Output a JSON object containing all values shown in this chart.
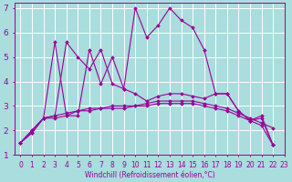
{
  "xlabel": "Windchill (Refroidissement éolien,°C)",
  "xlim": [
    -0.5,
    23
  ],
  "ylim": [
    1,
    7.2
  ],
  "xticks": [
    0,
    1,
    2,
    3,
    4,
    5,
    6,
    7,
    8,
    9,
    10,
    11,
    12,
    13,
    14,
    15,
    16,
    17,
    18,
    19,
    20,
    21,
    22,
    23
  ],
  "yticks": [
    1,
    2,
    3,
    4,
    5,
    6,
    7
  ],
  "bg_color": "#aadddd",
  "grid_color": "#ffffff",
  "line_color": "#990099",
  "series": [
    {
      "x": [
        0,
        1,
        2,
        3,
        4,
        5,
        6,
        7,
        8,
        9,
        10,
        11,
        12,
        13,
        14,
        15,
        16,
        17,
        18,
        19,
        20,
        21,
        22
      ],
      "y": [
        1.5,
        1.9,
        2.5,
        5.6,
        2.6,
        2.6,
        5.3,
        3.9,
        5.0,
        3.7,
        7.0,
        5.8,
        6.3,
        7.0,
        6.5,
        6.2,
        5.3,
        3.5,
        3.5,
        2.8,
        2.4,
        2.6,
        1.4
      ]
    },
    {
      "x": [
        0,
        1,
        2,
        3,
        4,
        5,
        6,
        7,
        8,
        9,
        10,
        11,
        12,
        13,
        14,
        15,
        16,
        17,
        18,
        19,
        20,
        21,
        22
      ],
      "y": [
        1.5,
        1.9,
        2.5,
        2.5,
        2.6,
        2.8,
        2.9,
        2.9,
        3.0,
        3.0,
        3.0,
        3.1,
        3.2,
        3.2,
        3.2,
        3.2,
        3.1,
        3.0,
        2.9,
        2.7,
        2.5,
        2.3,
        2.1
      ]
    },
    {
      "x": [
        0,
        1,
        2,
        3,
        4,
        5,
        6,
        7,
        8,
        9,
        10,
        11,
        12,
        13,
        14,
        15,
        16,
        17,
        18,
        19,
        20,
        21,
        22
      ],
      "y": [
        1.5,
        2.0,
        2.5,
        2.6,
        2.7,
        2.8,
        2.8,
        2.9,
        2.9,
        2.9,
        3.0,
        3.0,
        3.1,
        3.1,
        3.1,
        3.1,
        3.0,
        2.9,
        2.8,
        2.6,
        2.4,
        2.2,
        1.4
      ]
    },
    {
      "x": [
        0,
        1,
        2,
        3,
        4,
        5,
        6,
        7,
        8,
        9,
        10,
        11,
        12,
        13,
        14,
        15,
        16,
        17,
        18,
        19,
        20,
        21,
        22
      ],
      "y": [
        1.5,
        2.0,
        2.5,
        2.6,
        5.6,
        5.0,
        4.5,
        5.3,
        3.9,
        3.7,
        3.5,
        3.2,
        3.4,
        3.5,
        3.5,
        3.4,
        3.3,
        3.5,
        3.5,
        2.8,
        2.4,
        2.5,
        1.4
      ]
    }
  ],
  "tick_fontsize": 5.5,
  "label_fontsize": 5.5
}
